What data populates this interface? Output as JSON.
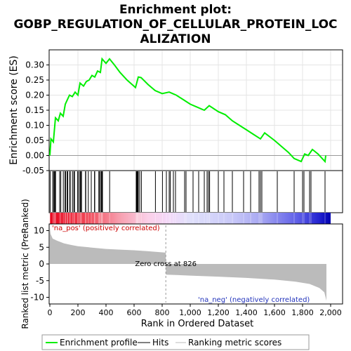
{
  "chart_data": {
    "type": "line",
    "title_lines": [
      "Enrichment plot:",
      "GOBP_REGULATION_OF_CELLULAR_PROTEIN_LOC",
      "ALIZATION"
    ],
    "es_panel": {
      "ylabel": "Enrichment score (ES)",
      "ylim": [
        -0.05,
        0.35
      ],
      "yticks": [
        "-0.05",
        "0.00",
        "0.05",
        "0.10",
        "0.15",
        "0.20",
        "0.25",
        "0.30"
      ],
      "ytick_values": [
        -0.05,
        0.0,
        0.05,
        0.1,
        0.15,
        0.2,
        0.25,
        0.3
      ],
      "color": "#00ee00",
      "points": [
        [
          0,
          0.0
        ],
        [
          8,
          0.055
        ],
        [
          25,
          0.045
        ],
        [
          40,
          0.125
        ],
        [
          60,
          0.115
        ],
        [
          75,
          0.14
        ],
        [
          95,
          0.13
        ],
        [
          110,
          0.17
        ],
        [
          125,
          0.185
        ],
        [
          140,
          0.2
        ],
        [
          160,
          0.195
        ],
        [
          180,
          0.21
        ],
        [
          200,
          0.2
        ],
        [
          215,
          0.24
        ],
        [
          240,
          0.23
        ],
        [
          260,
          0.245
        ],
        [
          280,
          0.25
        ],
        [
          300,
          0.265
        ],
        [
          320,
          0.26
        ],
        [
          340,
          0.28
        ],
        [
          360,
          0.275
        ],
        [
          372,
          0.32
        ],
        [
          400,
          0.305
        ],
        [
          425,
          0.32
        ],
        [
          460,
          0.3
        ],
        [
          500,
          0.275
        ],
        [
          550,
          0.25
        ],
        [
          610,
          0.225
        ],
        [
          630,
          0.26
        ],
        [
          650,
          0.258
        ],
        [
          700,
          0.235
        ],
        [
          750,
          0.215
        ],
        [
          800,
          0.205
        ],
        [
          850,
          0.21
        ],
        [
          900,
          0.2
        ],
        [
          950,
          0.185
        ],
        [
          1000,
          0.17
        ],
        [
          1050,
          0.16
        ],
        [
          1100,
          0.15
        ],
        [
          1135,
          0.165
        ],
        [
          1200,
          0.145
        ],
        [
          1250,
          0.135
        ],
        [
          1300,
          0.115
        ],
        [
          1350,
          0.1
        ],
        [
          1400,
          0.085
        ],
        [
          1450,
          0.07
        ],
        [
          1500,
          0.055
        ],
        [
          1530,
          0.075
        ],
        [
          1600,
          0.05
        ],
        [
          1650,
          0.03
        ],
        [
          1700,
          0.01
        ],
        [
          1740,
          -0.01
        ],
        [
          1790,
          -0.02
        ],
        [
          1815,
          0.005
        ],
        [
          1840,
          0.0
        ],
        [
          1870,
          0.02
        ],
        [
          1910,
          0.005
        ],
        [
          1960,
          -0.02
        ],
        [
          1965,
          0.0
        ]
      ]
    },
    "hits": [
      2,
      20,
      28,
      32,
      38,
      41,
      70,
      78,
      96,
      108,
      112,
      123,
      128,
      142,
      145,
      161,
      171,
      176,
      198,
      205,
      215,
      220,
      226,
      254,
      256,
      274,
      295,
      318,
      320,
      349,
      353,
      361,
      368,
      371,
      375,
      426,
      615,
      620,
      625,
      630,
      640,
      652,
      752,
      802,
      830,
      850,
      858,
      880,
      895,
      960,
      970,
      1020,
      1060,
      1100,
      1120,
      1130,
      1138,
      1200,
      1240,
      1300,
      1380,
      1430,
      1490,
      1500,
      1510,
      1620,
      1740,
      1800,
      1810,
      1850,
      1860,
      1960
    ],
    "ranked_panel": {
      "ylabel": "Ranked list metric (PreRanked)",
      "ylim": [
        -12,
        12
      ],
      "yticks": [
        "10",
        "5",
        "0",
        "-5",
        "-10"
      ],
      "ytick_values": [
        10,
        5,
        0,
        -5,
        -10
      ],
      "zero_cross_label": "Zero cross at 826",
      "zero_cross": 826,
      "pos_label": "'na_pos' (positively correlated)",
      "neg_label": "'na_neg' (negatively correlated)",
      "profile": [
        [
          0,
          11
        ],
        [
          5,
          9
        ],
        [
          20,
          7.6
        ],
        [
          50,
          7
        ],
        [
          100,
          6.2
        ],
        [
          150,
          5.7
        ],
        [
          200,
          5.3
        ],
        [
          300,
          4.9
        ],
        [
          400,
          4.5
        ],
        [
          500,
          4.3
        ],
        [
          600,
          4.1
        ],
        [
          700,
          3.8
        ],
        [
          826,
          3.4
        ],
        [
          827,
          -3.2
        ],
        [
          900,
          -3.3
        ],
        [
          1000,
          -3.5
        ],
        [
          1200,
          -3.8
        ],
        [
          1400,
          -4.2
        ],
        [
          1600,
          -4.7
        ],
        [
          1750,
          -5.3
        ],
        [
          1850,
          -6.0
        ],
        [
          1920,
          -7.2
        ],
        [
          1955,
          -8.5
        ],
        [
          1970,
          -11
        ]
      ]
    },
    "xaxis": {
      "xlabel": "Rank in Ordered Dataset",
      "xlim": [
        0,
        2000
      ],
      "xtick_values": [
        0,
        200,
        400,
        600,
        800,
        1000,
        1200,
        1400,
        1600,
        1800,
        2000
      ],
      "xticks": [
        "0",
        "200",
        "400",
        "600",
        "800",
        "1,000",
        "1,200",
        "1,400",
        "1,600",
        "1,800",
        "2,000"
      ]
    },
    "legend": {
      "placement": "bottom",
      "items": [
        {
          "label": "Enrichment profile",
          "color": "#00ee00"
        },
        {
          "label": "Hits",
          "color": "#000000"
        },
        {
          "label": "Ranking metric scores",
          "color": "#bbbbbb"
        }
      ]
    }
  }
}
